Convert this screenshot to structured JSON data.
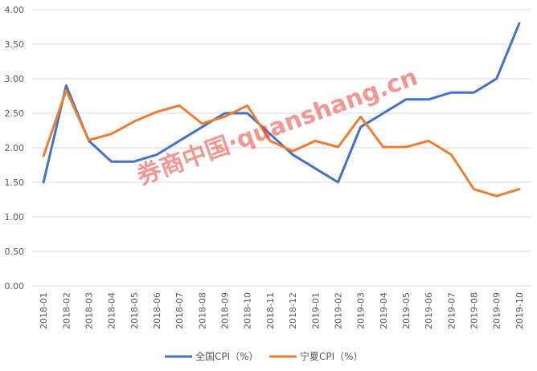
{
  "chart_data": {
    "type": "line",
    "x": [
      "2018-01",
      "2018-02",
      "2018-03",
      "2018-04",
      "2018-05",
      "2018-06",
      "2018-07",
      "2018-08",
      "2018-09",
      "2018-10",
      "2018-11",
      "2018-12",
      "2019-01",
      "2019-02",
      "2019-03",
      "2019-04",
      "2019-05",
      "2019-06",
      "2019-07",
      "2019-08",
      "2019-09",
      "2019-10"
    ],
    "series": [
      {
        "name": "全国CPI（%）",
        "color": "#4472c4",
        "values": [
          1.5,
          2.9,
          2.1,
          1.8,
          1.8,
          1.9,
          2.1,
          2.3,
          2.5,
          2.5,
          2.2,
          1.9,
          1.7,
          1.5,
          2.3,
          2.5,
          2.7,
          2.7,
          2.8,
          2.8,
          3.0,
          3.8
        ]
      },
      {
        "name": "宁夏CPI（%）",
        "color": "#ed7d31",
        "values": [
          1.88,
          2.83,
          2.11,
          2.2,
          2.38,
          2.52,
          2.61,
          2.35,
          2.45,
          2.61,
          2.1,
          1.95,
          2.1,
          2.01,
          2.45,
          2.01,
          2.01,
          2.1,
          1.9,
          1.4,
          1.3,
          1.4
        ]
      }
    ],
    "ylim": [
      0,
      4
    ],
    "yticks": [
      "0.00",
      "0.50",
      "1.00",
      "1.50",
      "2.00",
      "2.50",
      "3.00",
      "3.50",
      "4.00"
    ],
    "grid": true,
    "legend_position": "bottom",
    "watermark": "券商中国·quanshang.cn"
  }
}
